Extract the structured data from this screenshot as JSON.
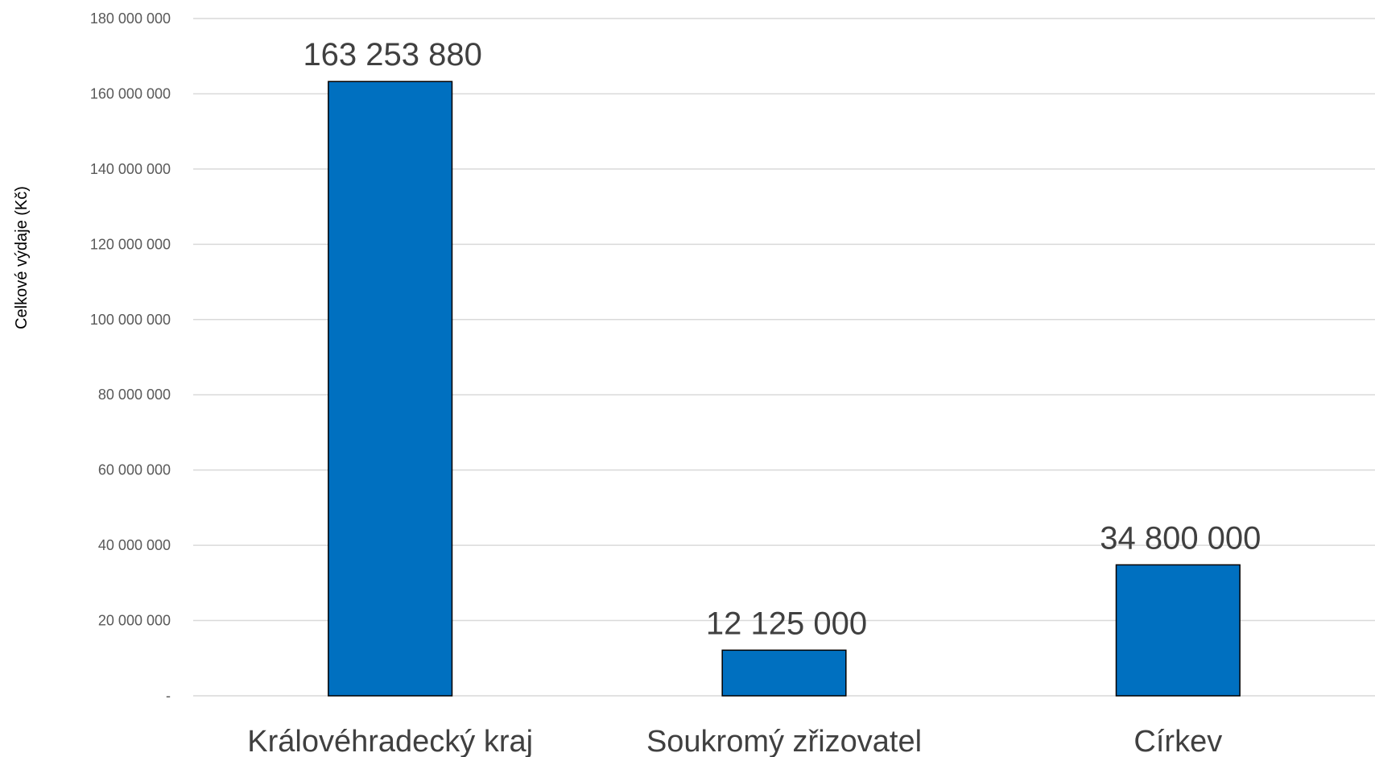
{
  "chart_data": {
    "type": "bar",
    "categories": [
      "Královéhradecký kraj",
      "Soukromý zřizovatel",
      "Církev"
    ],
    "values": [
      163253880,
      12125000,
      34800000
    ],
    "data_labels": [
      "163 253 880",
      "12 125 000",
      "34 800 000"
    ],
    "ylabel": "Celkové výdaje (Kč)",
    "ylim": [
      0,
      180000000
    ],
    "yticks": [
      0,
      20000000,
      40000000,
      60000000,
      80000000,
      100000000,
      120000000,
      140000000,
      160000000,
      180000000
    ],
    "ytick_labels": [
      "-",
      "20 000 000",
      "40 000 000",
      "60 000 000",
      "80 000 000",
      "100 000 000",
      "120 000 000",
      "140 000 000",
      "160 000 000",
      "180 000 000"
    ],
    "grid": true,
    "legend": "none",
    "bar_color": "#0070C0"
  }
}
